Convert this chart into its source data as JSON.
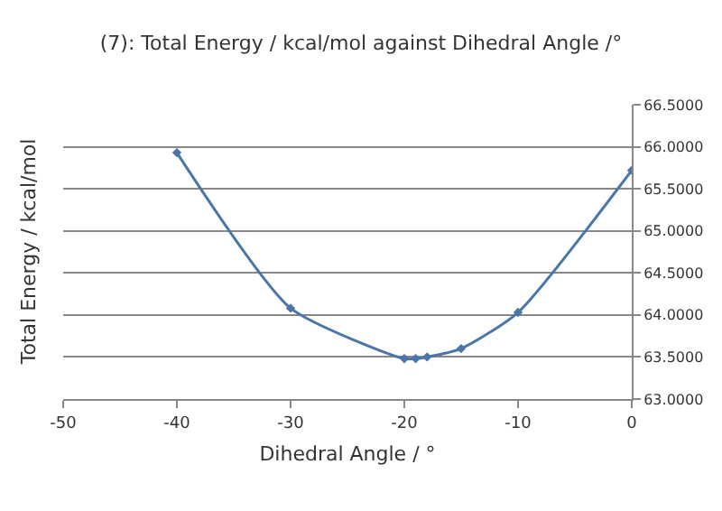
{
  "chart_data": {
    "type": "line",
    "title": "(7): Total Energy / kcal/mol against Dihedral Angle /°",
    "xlabel": "Dihedral Angle / °",
    "ylabel": "Total Energy / kcal/mol",
    "x": [
      -40,
      -30,
      -20,
      -19,
      -18,
      -15,
      -10,
      0
    ],
    "series": [
      {
        "color": "#4a76a8",
        "values": [
          65.93,
          64.08,
          63.48,
          63.48,
          63.5,
          63.6,
          64.03,
          65.72
        ]
      }
    ],
    "xlim": [
      -50,
      0
    ],
    "xticks": [
      -50,
      -40,
      -30,
      -20,
      -10,
      0
    ],
    "ylim": [
      63,
      66.5
    ],
    "yticks": [
      {
        "value": 63,
        "label": "63.0000"
      },
      {
        "value": 63.5,
        "label": "63.5000"
      },
      {
        "value": 64,
        "label": "64.0000"
      },
      {
        "value": 64.5,
        "label": "64.5000"
      },
      {
        "value": 65,
        "label": "65.0000"
      },
      {
        "value": 65.5,
        "label": "65.5000"
      },
      {
        "value": 66,
        "label": "66.0000"
      },
      {
        "value": 66.5,
        "label": "66.5000"
      }
    ],
    "grid": "y",
    "marker": "diamond",
    "line_style": "solid"
  }
}
